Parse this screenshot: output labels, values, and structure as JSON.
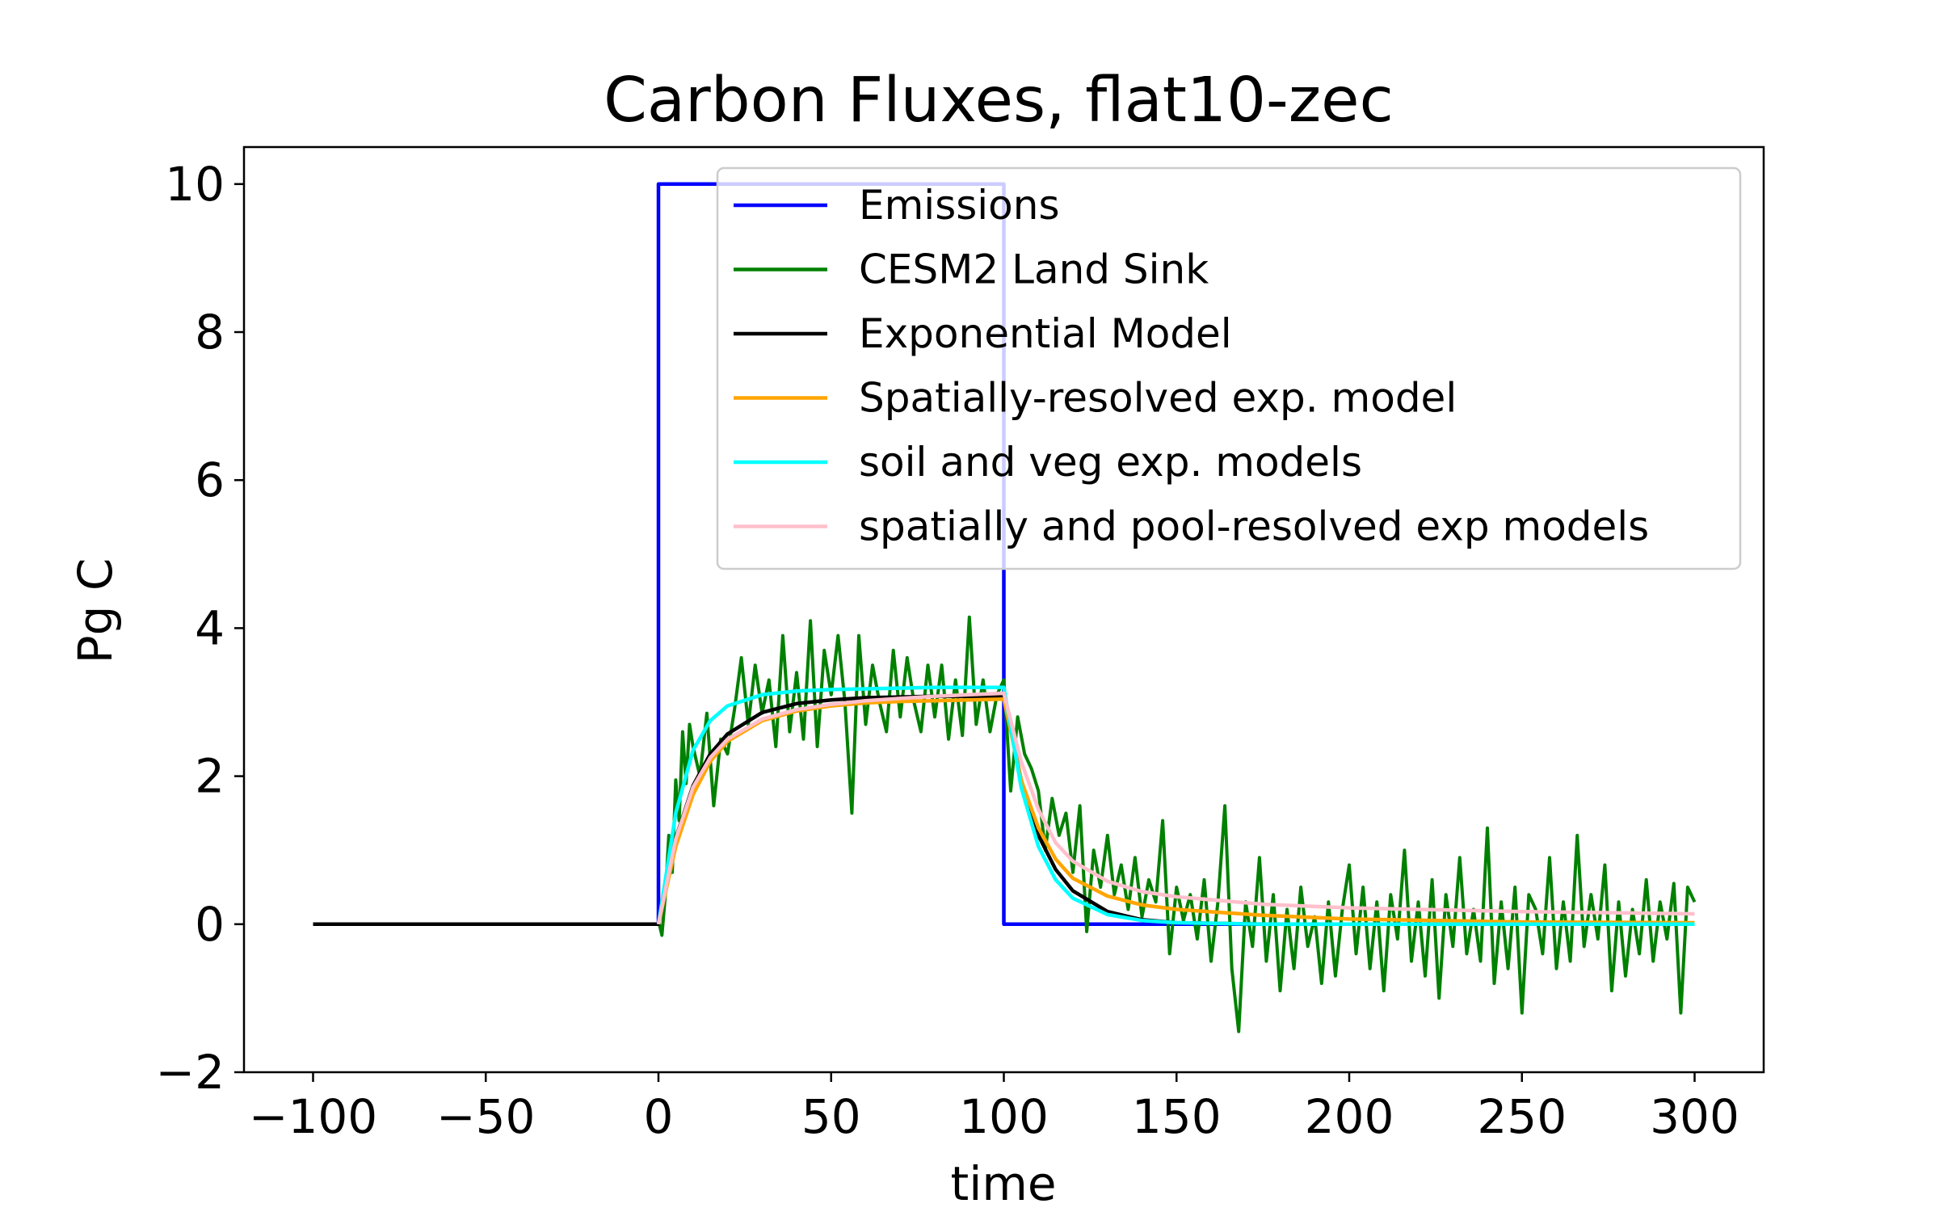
{
  "chart_data": {
    "type": "line",
    "title": "Carbon Fluxes, flat10-zec",
    "xlabel": "time",
    "ylabel": "Pg C",
    "xlim": [
      -120,
      320
    ],
    "ylim": [
      -2,
      10.5
    ],
    "xticks": [
      -100,
      -50,
      0,
      50,
      100,
      150,
      200,
      250,
      300
    ],
    "xtick_labels": [
      "−100",
      "−50",
      "0",
      "50",
      "100",
      "150",
      "200",
      "250",
      "300"
    ],
    "yticks": [
      -2,
      0,
      2,
      4,
      6,
      8,
      10
    ],
    "ytick_labels": [
      "−2",
      "0",
      "2",
      "4",
      "6",
      "8",
      "10"
    ],
    "grid": false,
    "legend_position": "top-right",
    "series": [
      {
        "name": "Emissions",
        "color": "#0000ff",
        "x": [
          -100,
          0,
          0,
          100,
          100,
          300
        ],
        "y": [
          0,
          0,
          10,
          10,
          0,
          0
        ]
      },
      {
        "name": "CESM2 Land Sink",
        "color": "#008000",
        "x": [
          0,
          1,
          2,
          3,
          4,
          5,
          6,
          7,
          8,
          9,
          10,
          12,
          14,
          16,
          18,
          20,
          22,
          24,
          26,
          28,
          30,
          32,
          34,
          36,
          38,
          40,
          42,
          44,
          46,
          48,
          50,
          52,
          54,
          56,
          58,
          60,
          62,
          64,
          66,
          68,
          70,
          72,
          74,
          76,
          78,
          80,
          82,
          84,
          86,
          88,
          90,
          92,
          94,
          96,
          98,
          100,
          102,
          104,
          106,
          108,
          110,
          112,
          114,
          116,
          118,
          120,
          122,
          124,
          126,
          128,
          130,
          132,
          134,
          136,
          138,
          140,
          142,
          144,
          146,
          148,
          150,
          152,
          154,
          156,
          158,
          160,
          162,
          164,
          166,
          168,
          170,
          172,
          174,
          176,
          178,
          180,
          182,
          184,
          186,
          188,
          190,
          192,
          194,
          196,
          198,
          200,
          202,
          204,
          206,
          208,
          210,
          212,
          214,
          216,
          218,
          220,
          222,
          224,
          226,
          228,
          230,
          232,
          234,
          236,
          238,
          240,
          242,
          244,
          246,
          248,
          250,
          252,
          254,
          256,
          258,
          260,
          262,
          264,
          266,
          268,
          270,
          272,
          274,
          276,
          278,
          280,
          282,
          284,
          286,
          288,
          290,
          292,
          294,
          296,
          298,
          300
        ],
        "y": [
          0.05,
          -0.15,
          0.4,
          1.2,
          0.7,
          1.95,
          1.4,
          2.6,
          1.9,
          2.7,
          2.4,
          2.0,
          2.85,
          1.6,
          2.5,
          2.3,
          2.9,
          3.6,
          2.7,
          3.5,
          2.85,
          3.3,
          2.4,
          3.9,
          2.6,
          3.4,
          2.5,
          4.1,
          2.4,
          3.7,
          3.1,
          3.9,
          3.0,
          1.5,
          3.9,
          2.7,
          3.5,
          3.0,
          2.6,
          3.7,
          2.8,
          3.6,
          3.0,
          2.6,
          3.5,
          2.8,
          3.5,
          2.5,
          3.3,
          2.55,
          4.15,
          2.7,
          3.3,
          2.6,
          3.1,
          3.3,
          1.8,
          2.8,
          2.3,
          2.1,
          1.8,
          1.0,
          1.7,
          1.2,
          1.5,
          0.7,
          1.6,
          -0.1,
          1.0,
          0.5,
          1.2,
          0.4,
          0.8,
          0.2,
          0.9,
          0.1,
          0.6,
          0.3,
          1.4,
          -0.4,
          0.5,
          0.05,
          0.4,
          -0.2,
          0.6,
          -0.5,
          0.3,
          1.6,
          -0.6,
          -1.45,
          0.3,
          -0.3,
          0.9,
          -0.5,
          0.4,
          -0.9,
          0.2,
          -0.6,
          0.5,
          -0.3,
          0.1,
          -0.8,
          0.3,
          -0.7,
          0.2,
          0.8,
          -0.4,
          0.5,
          -0.6,
          0.3,
          -0.9,
          0.4,
          -0.2,
          1.0,
          -0.5,
          0.3,
          -0.7,
          0.6,
          -1.0,
          0.4,
          -0.3,
          0.9,
          -0.4,
          0.2,
          -0.5,
          1.3,
          -0.8,
          0.3,
          -0.6,
          0.5,
          -1.2,
          0.4,
          0.2,
          -0.4,
          0.9,
          -0.6,
          0.3,
          -0.5,
          1.2,
          -0.3,
          0.4,
          -0.2,
          0.8,
          -0.9,
          0.3,
          -0.7,
          0.2,
          -0.4,
          0.6,
          -0.5,
          0.3,
          -0.2,
          0.55,
          -1.2,
          0.5,
          0.3
        ]
      },
      {
        "name": "Exponential Model",
        "color": "#000000",
        "x": [
          -100,
          0,
          5,
          10,
          15,
          20,
          30,
          40,
          50,
          60,
          70,
          80,
          90,
          100,
          105,
          110,
          115,
          120,
          130,
          140,
          150,
          175,
          200,
          250,
          300
        ],
        "y": [
          0,
          0,
          1.16,
          1.87,
          2.3,
          2.57,
          2.86,
          2.98,
          3.03,
          3.06,
          3.07,
          3.08,
          3.08,
          3.08,
          1.95,
          1.2,
          0.74,
          0.45,
          0.17,
          0.06,
          0.02,
          0.0,
          0.0,
          0.0,
          0.0
        ]
      },
      {
        "name": "Spatially-resolved exp. model",
        "color": "#ffa500",
        "x": [
          0,
          5,
          10,
          15,
          20,
          30,
          40,
          50,
          60,
          70,
          80,
          90,
          100,
          105,
          110,
          115,
          120,
          130,
          140,
          150,
          175,
          200,
          250,
          300
        ],
        "y": [
          0,
          1.05,
          1.75,
          2.2,
          2.47,
          2.75,
          2.88,
          2.95,
          2.99,
          3.01,
          3.02,
          3.03,
          3.04,
          1.95,
          1.3,
          0.88,
          0.62,
          0.38,
          0.26,
          0.2,
          0.12,
          0.07,
          0.03,
          0.02
        ]
      },
      {
        "name": "soil and veg exp. models",
        "color": "#00ffff",
        "x": [
          0,
          5,
          10,
          15,
          20,
          30,
          40,
          50,
          60,
          70,
          80,
          90,
          100,
          105,
          110,
          115,
          120,
          130,
          140,
          150,
          175,
          200,
          250,
          300
        ],
        "y": [
          0,
          1.5,
          2.35,
          2.75,
          2.95,
          3.1,
          3.15,
          3.17,
          3.18,
          3.19,
          3.2,
          3.2,
          3.2,
          1.85,
          1.05,
          0.6,
          0.35,
          0.13,
          0.05,
          0.02,
          0.0,
          0.0,
          0.0,
          0.0
        ]
      },
      {
        "name": "spatially and pool-resolved exp models",
        "color": "#ffc0cb",
        "x": [
          0,
          5,
          10,
          15,
          20,
          30,
          40,
          50,
          60,
          70,
          80,
          90,
          100,
          105,
          110,
          115,
          120,
          130,
          140,
          150,
          175,
          200,
          250,
          300
        ],
        "y": [
          0,
          1.15,
          1.85,
          2.25,
          2.5,
          2.77,
          2.9,
          2.97,
          3.02,
          3.05,
          3.08,
          3.1,
          3.12,
          2.2,
          1.55,
          1.1,
          0.85,
          0.58,
          0.44,
          0.37,
          0.27,
          0.22,
          0.17,
          0.14
        ]
      }
    ]
  }
}
